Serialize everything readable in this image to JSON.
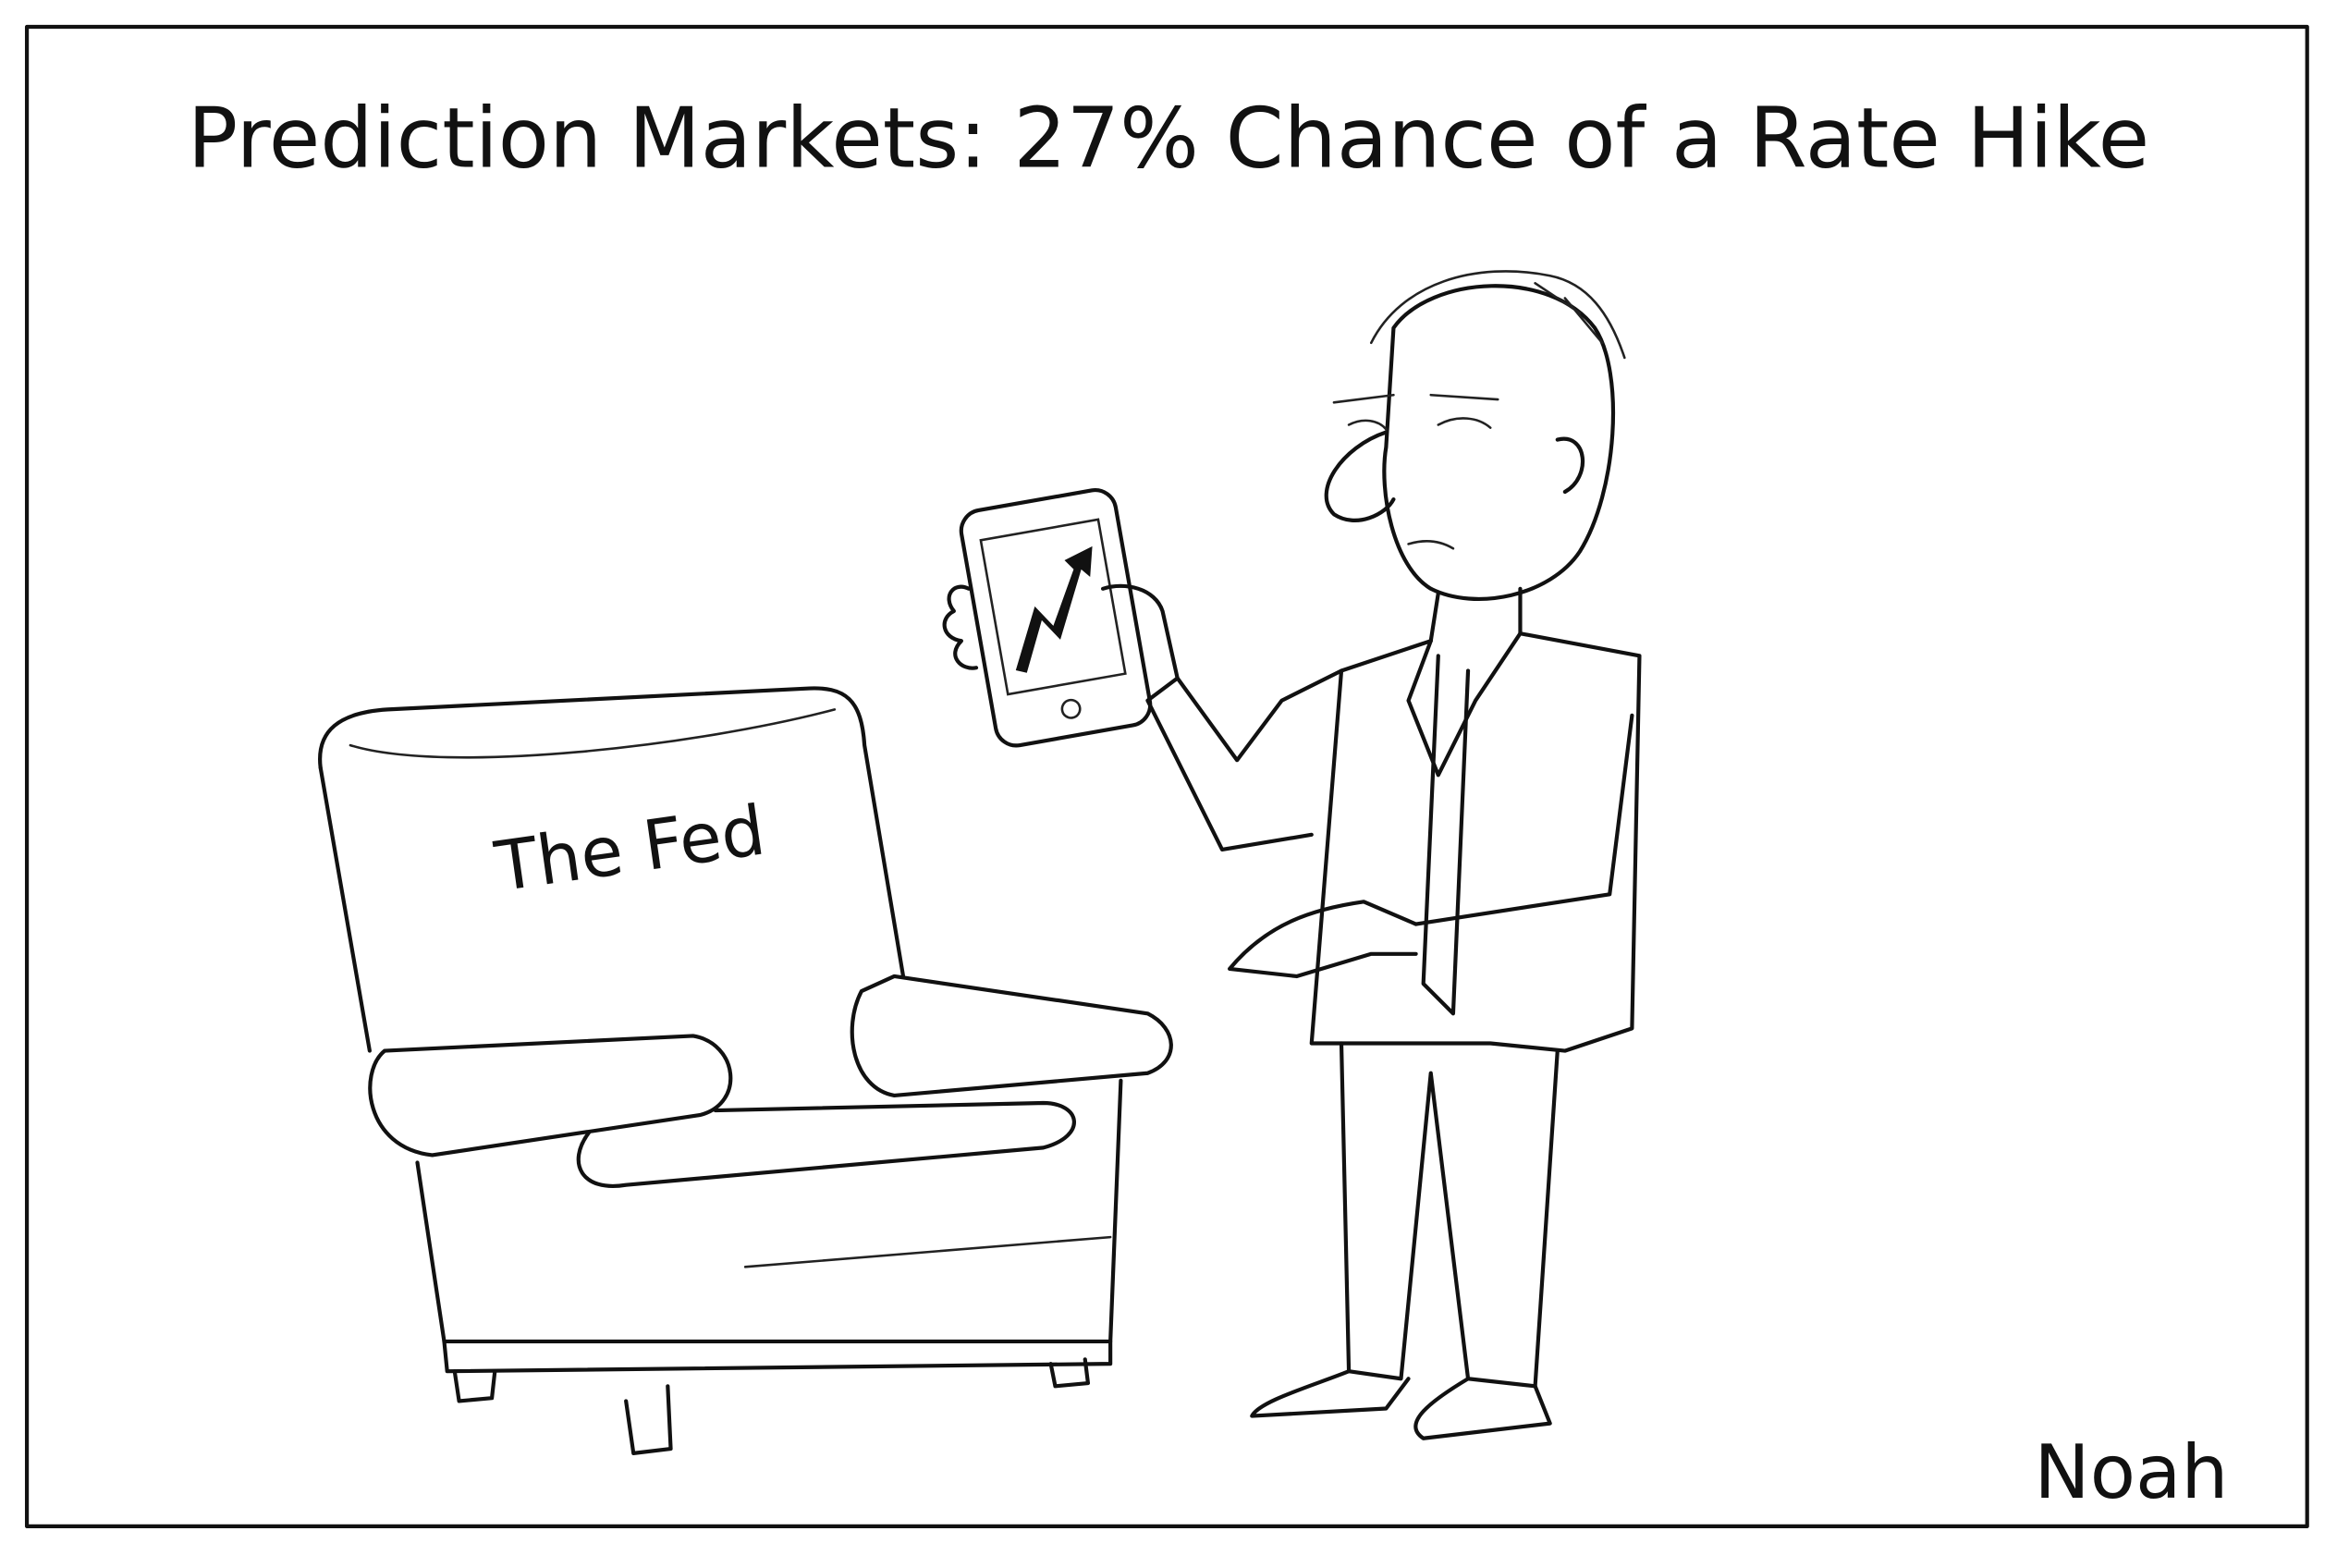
{
  "caption": "Prediction Markets: 27% Chance of a Rate Hike",
  "chair_label": "The Fed",
  "signature": "Noah"
}
